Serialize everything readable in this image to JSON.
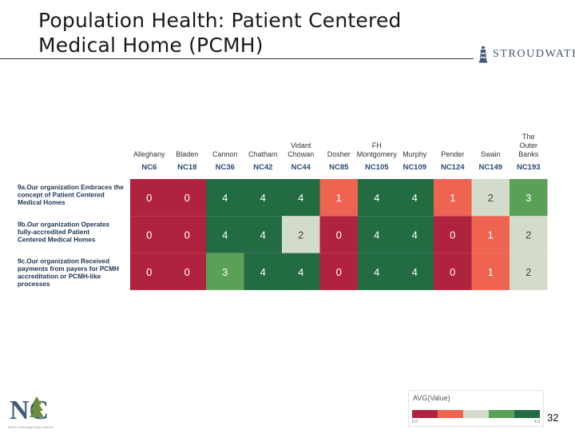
{
  "slide": {
    "title_line1": "Population Health:  Patient Centered",
    "title_line2": "Medical Home (PCMH)",
    "brand": "STROUDWATER",
    "page_number": "32"
  },
  "colors": {
    "accent_blue": "#3f5a79",
    "heat_0": "#b0233f",
    "heat_1": "#ee6450",
    "heat_2": "#d3dccb",
    "heat_3": "#5aa057",
    "heat_4": "#226b43"
  },
  "chart_data": {
    "type": "heatmap",
    "title": "",
    "columns": [
      {
        "name": "Alleghany",
        "code": "NC6"
      },
      {
        "name": "Bladen",
        "code": "NC18"
      },
      {
        "name": "Cannon",
        "code": "NC36"
      },
      {
        "name": "Chatham",
        "code": "NC42"
      },
      {
        "name": "Vidant Chowan",
        "code": "NC44"
      },
      {
        "name": "Dosher",
        "code": "NC85"
      },
      {
        "name": "FH Montgomery",
        "code": "NC105"
      },
      {
        "name": "Murphy",
        "code": "NC109"
      },
      {
        "name": "Pender",
        "code": "NC124"
      },
      {
        "name": "Swain",
        "code": "NC149"
      },
      {
        "name": "The Outer Banks",
        "code": "NC193"
      }
    ],
    "rows": [
      "9a.Our organization Embraces the concept of Patient Centered Medical Homes",
      "9b.Our organization Operates fully-accredited Patient Centered Medical Homes",
      "9c.Our organization Received payments from payers for PCMH accreditation or PCMH-like processes"
    ],
    "values": [
      [
        0,
        0,
        4,
        4,
        4,
        1,
        4,
        4,
        1,
        2,
        3
      ],
      [
        0,
        0,
        4,
        4,
        2,
        0,
        4,
        4,
        0,
        1,
        2
      ],
      [
        0,
        0,
        3,
        4,
        4,
        0,
        4,
        4,
        0,
        1,
        2
      ]
    ],
    "color_scale_range": [
      0,
      4
    ],
    "legend": {
      "title": "AVG(Value)",
      "min_label": "0.0",
      "max_label": "4.0"
    }
  },
  "logo": {
    "text": "NC",
    "subtitle": "NORTH CAROLINA RURAL HEALTH"
  }
}
